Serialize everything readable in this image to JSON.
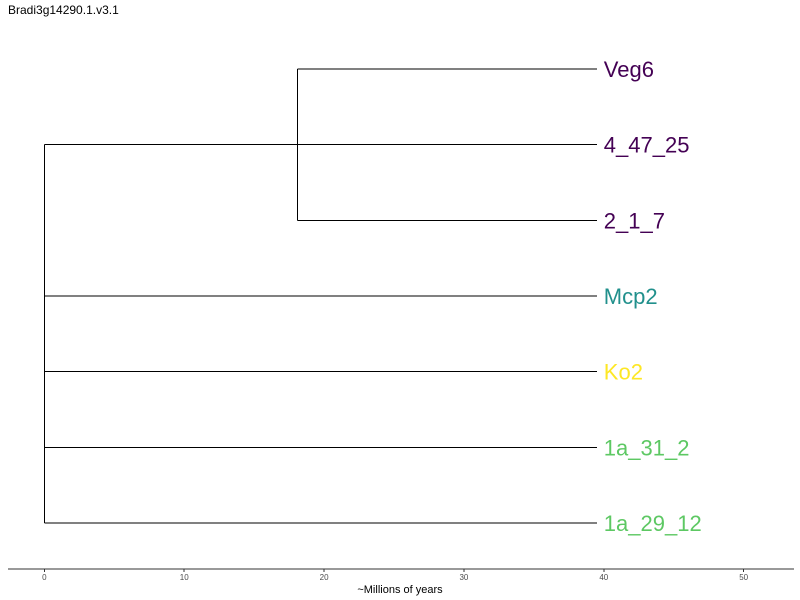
{
  "title": "Bradi3g14290.1.v3.1",
  "x_axis": {
    "label": "~Millions of years",
    "ticks": [
      0,
      10,
      20,
      30,
      40,
      50
    ],
    "range": [
      -2.6,
      53.6
    ]
  },
  "tree": {
    "root_age": 0,
    "tip_time": 39.5,
    "inner_clade_split": 18.1,
    "tips": [
      {
        "label": "Veg6",
        "color": "#440154",
        "clade": "inner"
      },
      {
        "label": "4_47_25",
        "color": "#440154",
        "clade": "inner"
      },
      {
        "label": "2_1_7",
        "color": "#440154",
        "clade": "inner"
      },
      {
        "label": "Mcp2",
        "color": "#21908C",
        "clade": "root"
      },
      {
        "label": "Ko2",
        "color": "#FDE725",
        "clade": "root"
      },
      {
        "label": "1a_31_2",
        "color": "#5DC863",
        "clade": "root"
      },
      {
        "label": "1a_29_12",
        "color": "#5DC863",
        "clade": "root"
      }
    ]
  }
}
